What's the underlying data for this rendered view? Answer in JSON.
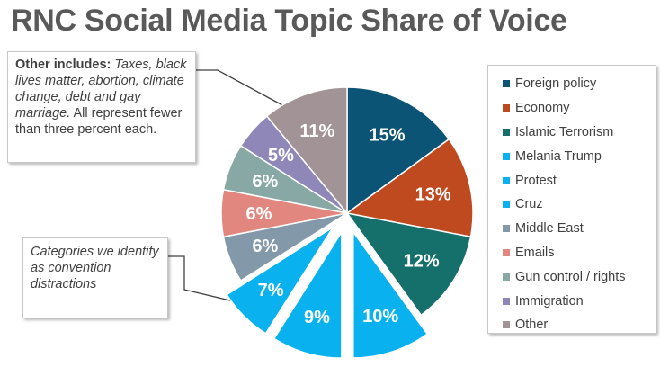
{
  "title": "RNC Social Media Topic Share of Voice",
  "note": {
    "bold_label": "Other includes:",
    "italic_text": "Taxes, black lives matter, abortion, climate change, debt and gay marriage.",
    "plain_text": "All represent fewer than three percent each."
  },
  "note2": "Categories we identify as convention distractions",
  "colors": {
    "callout_line": "#404040",
    "label_text": "#ffffff"
  },
  "chart_data": {
    "type": "pie",
    "title": "RNC Social Media Topic Share of Voice",
    "legend_position": "right",
    "slices": [
      {
        "label": "Foreign policy",
        "value": 15,
        "display": "15%",
        "color": "#0B5476",
        "exploded": false
      },
      {
        "label": "Economy",
        "value": 13,
        "display": "13%",
        "color": "#BF4A20",
        "exploded": false
      },
      {
        "label": "Islamic Terrorism",
        "value": 12,
        "display": "12%",
        "color": "#156F6B",
        "exploded": false
      },
      {
        "label": "Melania Trump",
        "value": 10,
        "display": "10%",
        "color": "#09B2EE",
        "exploded": true
      },
      {
        "label": "Protest",
        "value": 9,
        "display": "9%",
        "color": "#09B2EE",
        "exploded": true
      },
      {
        "label": "Cruz",
        "value": 7,
        "display": "7%",
        "color": "#09B2EE",
        "exploded": true
      },
      {
        "label": "Middle East",
        "value": 6,
        "display": "6%",
        "color": "#8398A8",
        "exploded": false
      },
      {
        "label": "Emails",
        "value": 6,
        "display": "6%",
        "color": "#E2877F",
        "exploded": false
      },
      {
        "label": "Gun control / rights",
        "value": 6,
        "display": "6%",
        "color": "#87A8A4",
        "exploded": false
      },
      {
        "label": "Immigration",
        "value": 5,
        "display": "5%",
        "color": "#8E87B8",
        "exploded": false
      },
      {
        "label": "Other",
        "value": 11,
        "display": "11%",
        "color": "#A29396",
        "exploded": false
      }
    ]
  }
}
